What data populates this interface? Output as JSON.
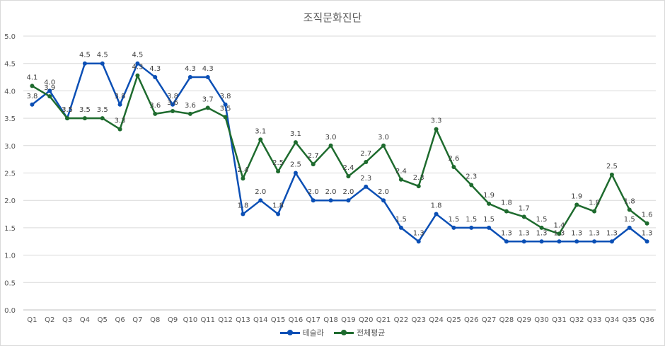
{
  "chart_data": {
    "type": "line",
    "title": "조직문화진단",
    "xlabel": "",
    "ylabel": "",
    "ylim": [
      0,
      5
    ],
    "yticks": [
      "0.0",
      "0.5",
      "1.0",
      "1.5",
      "2.0",
      "2.5",
      "3.0",
      "3.5",
      "4.0",
      "4.5",
      "5.0"
    ],
    "grid": true,
    "legend_position": "bottom",
    "categories": [
      "Q1",
      "Q2",
      "Q3",
      "Q4",
      "Q5",
      "Q6",
      "Q7",
      "Q8",
      "Q9",
      "Q10",
      "Q11",
      "Q12",
      "Q13",
      "Q14",
      "Q15",
      "Q16",
      "Q17",
      "Q18",
      "Q19",
      "Q20",
      "Q21",
      "Q22",
      "Q23",
      "Q24",
      "Q25",
      "Q26",
      "Q27",
      "Q28",
      "Q29",
      "Q30",
      "Q31",
      "Q32",
      "Q33",
      "Q34",
      "Q35",
      "Q36"
    ],
    "series": [
      {
        "name": "테슬라",
        "color": "#0b4fb5",
        "values": [
          3.75,
          4.0,
          3.5,
          4.5,
          4.5,
          3.75,
          4.5,
          4.25,
          3.75,
          4.25,
          4.25,
          3.75,
          1.75,
          2.0,
          1.75,
          2.5,
          2.0,
          2.0,
          2.0,
          2.25,
          2.0,
          1.5,
          1.25,
          1.75,
          1.5,
          1.5,
          1.5,
          1.25,
          1.25,
          1.25,
          1.25,
          1.25,
          1.25,
          1.25,
          1.5,
          1.25
        ],
        "labels": [
          "3.8",
          "4.0",
          "3.5",
          "4.5",
          "4.5",
          "3.8",
          "4.5",
          "4.3",
          "3.8",
          "4.3",
          "4.3",
          "3.8",
          "1.8",
          "2.0",
          "1.8",
          "2.5",
          "2.0",
          "2.0",
          "2.0",
          "2.3",
          "2.0",
          "1.5",
          "1.3",
          "1.8",
          "1.5",
          "1.5",
          "1.5",
          "1.3",
          "1.3",
          "1.3",
          "1.3",
          "1.3",
          "1.3",
          "1.3",
          "1.5",
          "1.3"
        ]
      },
      {
        "name": "전체평균",
        "color": "#1e6b2e",
        "values": [
          4.09,
          3.9,
          3.5,
          3.5,
          3.5,
          3.3,
          4.28,
          3.58,
          3.63,
          3.58,
          3.69,
          3.52,
          2.4,
          3.11,
          2.53,
          3.06,
          2.66,
          3.0,
          2.44,
          2.7,
          3.0,
          2.38,
          2.26,
          3.3,
          2.61,
          2.28,
          1.94,
          1.8,
          1.7,
          1.5,
          1.39,
          1.92,
          1.8,
          2.47,
          1.83,
          1.58
        ],
        "labels": [
          "4.1",
          "3.9",
          "3.5",
          "3.5",
          "3.5",
          "3.3",
          "4.3",
          "3.6",
          "3.6",
          "3.6",
          "3.7",
          "3.5",
          "2.4",
          "3.1",
          "2.5",
          "3.1",
          "2.7",
          "3.0",
          "2.4",
          "2.7",
          "3.0",
          "2.4",
          "2.3",
          "3.3",
          "2.6",
          "2.3",
          "1.9",
          "1.8",
          "1.7",
          "1.5",
          "1.4",
          "1.9",
          "1.8",
          "2.5",
          "1.8",
          "1.6"
        ]
      }
    ]
  }
}
